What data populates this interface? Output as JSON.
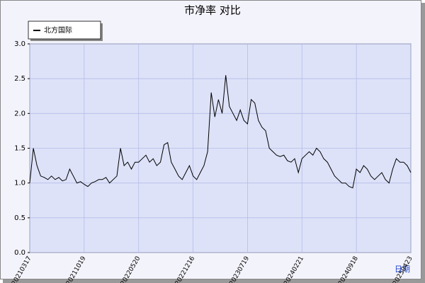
{
  "chart_data": {
    "type": "line",
    "title": "市净率  对比",
    "x_label": "日期",
    "categories": [
      "20210317",
      null,
      null,
      null,
      null,
      null,
      null,
      null,
      null,
      null,
      null,
      null,
      null,
      null,
      null,
      "20211019",
      null,
      null,
      null,
      null,
      null,
      null,
      null,
      null,
      null,
      null,
      null,
      null,
      null,
      null,
      "20220520",
      null,
      null,
      null,
      null,
      null,
      null,
      null,
      null,
      null,
      null,
      null,
      null,
      null,
      null,
      "20221216",
      null,
      null,
      null,
      null,
      null,
      null,
      null,
      null,
      null,
      null,
      null,
      null,
      null,
      null,
      "20230719",
      null,
      null,
      null,
      null,
      null,
      null,
      null,
      null,
      null,
      null,
      null,
      null,
      null,
      null,
      "20240221",
      null,
      null,
      null,
      null,
      null,
      null,
      null,
      null,
      null,
      null,
      null,
      null,
      null,
      null,
      "20240918",
      null,
      null,
      null,
      null,
      null,
      null,
      null,
      null,
      null,
      null,
      null,
      null,
      null,
      null,
      "20250423"
    ],
    "series": [
      {
        "name": "北方国际",
        "color": "#000000",
        "values": [
          1.0,
          1.5,
          1.25,
          1.1,
          1.08,
          1.05,
          1.1,
          1.05,
          1.08,
          1.03,
          1.05,
          1.2,
          1.1,
          1.0,
          1.02,
          0.98,
          0.95,
          1.0,
          1.02,
          1.05,
          1.05,
          1.08,
          1.0,
          1.05,
          1.1,
          1.5,
          1.25,
          1.3,
          1.2,
          1.3,
          1.3,
          1.35,
          1.4,
          1.3,
          1.35,
          1.25,
          1.3,
          1.55,
          1.58,
          1.3,
          1.2,
          1.1,
          1.05,
          1.15,
          1.25,
          1.1,
          1.05,
          1.15,
          1.25,
          1.45,
          2.3,
          1.95,
          2.2,
          2.0,
          2.55,
          2.1,
          2.0,
          1.9,
          2.05,
          1.9,
          1.85,
          2.2,
          2.15,
          1.9,
          1.8,
          1.75,
          1.5,
          1.45,
          1.4,
          1.38,
          1.4,
          1.32,
          1.3,
          1.35,
          1.15,
          1.35,
          1.4,
          1.45,
          1.4,
          1.5,
          1.45,
          1.35,
          1.3,
          1.2,
          1.1,
          1.05,
          1.0,
          1.0,
          0.95,
          0.93,
          1.2,
          1.15,
          1.25,
          1.2,
          1.1,
          1.05,
          1.1,
          1.15,
          1.05,
          1.0,
          1.2,
          1.35,
          1.3,
          1.3,
          1.25,
          1.15
        ]
      }
    ],
    "ylim": [
      0,
      3
    ],
    "yticks": [
      {
        "value": 0,
        "label": "0.0"
      },
      0.5,
      {
        "value": 1,
        "label": "1.0"
      },
      1.5,
      {
        "value": 2,
        "label": "2.0"
      },
      2.5,
      {
        "value": 3,
        "label": "3.0"
      }
    ],
    "grid": true
  }
}
